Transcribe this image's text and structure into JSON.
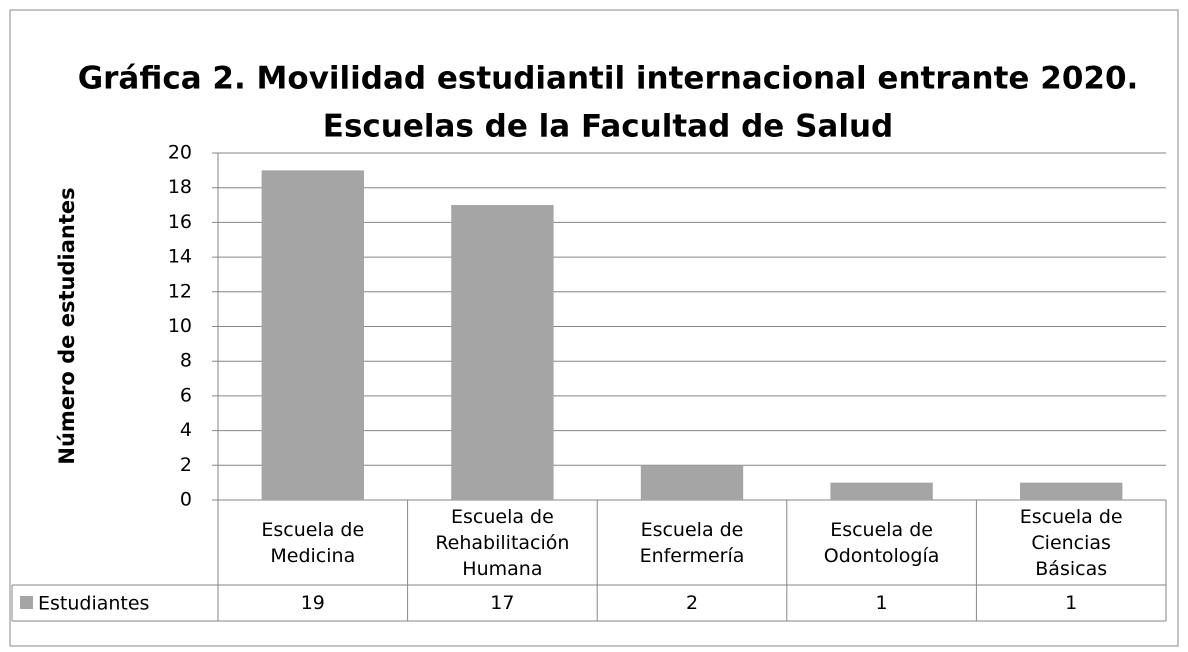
{
  "chart_data": {
    "type": "bar",
    "title": "Gráfica 2. Movilidad estudiantil internacional entrante 2020.",
    "subtitle": "Escuelas de la Facultad de Salud",
    "y_label": "Número de estudiantes",
    "categories": [
      "Escuela de Medicina",
      "Escuela de Rehabilitación Humana",
      "Escuela de Enfermería",
      "Escuela de Odontología",
      "Escuela de Ciencias Básicas"
    ],
    "series": [
      {
        "name": "Estudiantes",
        "color": "#a5a5a5",
        "values": [
          19,
          17,
          2,
          1,
          1
        ]
      }
    ],
    "ylim": [
      0,
      20
    ],
    "yticks": [
      0,
      2,
      4,
      6,
      8,
      10,
      12,
      14,
      16,
      18,
      20
    ],
    "grid": true
  }
}
